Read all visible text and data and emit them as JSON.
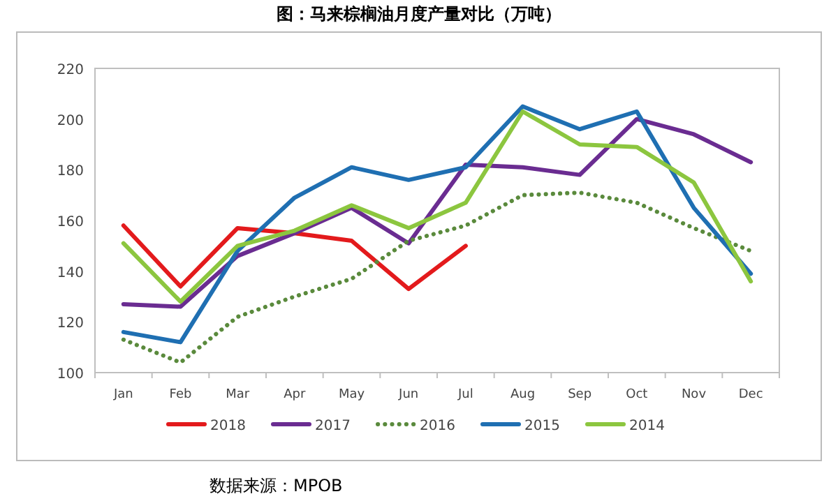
{
  "chart_data": {
    "type": "line",
    "title": "图：马来棕榈油月度产量对比（万吨）",
    "categories": [
      "Jan",
      "Feb",
      "Mar",
      "Apr",
      "May",
      "Jun",
      "Jul",
      "Aug",
      "Sep",
      "Oct",
      "Nov",
      "Dec"
    ],
    "series": [
      {
        "name": "2018",
        "color": "#e31a1c",
        "values": [
          158,
          134,
          157,
          155,
          152,
          133,
          150,
          null,
          null,
          null,
          null,
          null
        ]
      },
      {
        "name": "2017",
        "color": "#6a2c91",
        "values": [
          127,
          126,
          146,
          155,
          165,
          151,
          182,
          181,
          178,
          200,
          194,
          183
        ]
      },
      {
        "name": "2016",
        "color": "#5a8a3c",
        "line_style": "dotted",
        "values": [
          113,
          104,
          122,
          130,
          137,
          152,
          158,
          170,
          171,
          167,
          157,
          148
        ]
      },
      {
        "name": "2015",
        "color": "#1f6fb2",
        "values": [
          116,
          112,
          148,
          169,
          181,
          176,
          181,
          205,
          196,
          203,
          165,
          139
        ]
      },
      {
        "name": "2014",
        "color": "#8cc63f",
        "values": [
          151,
          128,
          150,
          156,
          166,
          157,
          167,
          203,
          190,
          189,
          175,
          136
        ]
      }
    ],
    "ylim": [
      100,
      220
    ],
    "yticks": [
      100,
      120,
      140,
      160,
      180,
      200,
      220
    ],
    "grid": false,
    "legend": "bottom",
    "marker": "none",
    "line_style": "solid",
    "annotations": [
      "数据来源：MPOB"
    ]
  }
}
